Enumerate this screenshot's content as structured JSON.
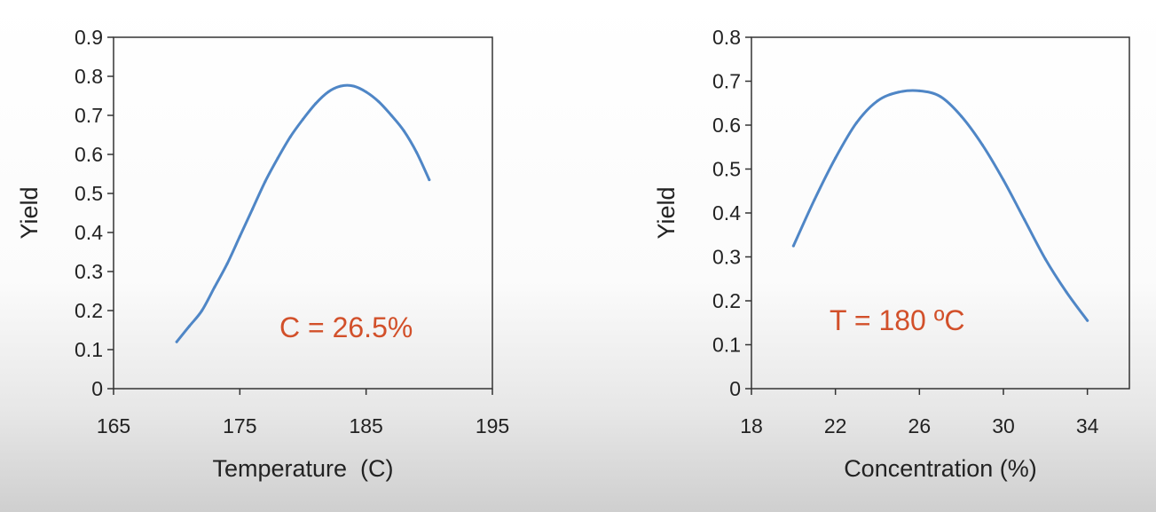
{
  "chart_data": [
    {
      "type": "line",
      "title": "",
      "xlabel": "Temperature  (C)",
      "ylabel": "Yield",
      "xlim": [
        165,
        195
      ],
      "ylim": [
        0,
        0.9
      ],
      "xticks": [
        165,
        175,
        185,
        195
      ],
      "yticks": [
        0,
        0.1,
        0.2,
        0.3,
        0.4,
        0.5,
        0.6,
        0.7,
        0.8,
        0.9
      ],
      "annotation": "C = 26.5%",
      "line_color": "#4f86c6",
      "annotation_color": "#d2502a",
      "grid": false,
      "series": [
        {
          "x": [
            170,
            171,
            172,
            173,
            174,
            175,
            176,
            177,
            178,
            179,
            180,
            181,
            182,
            183,
            184,
            185,
            186,
            187,
            188,
            189,
            190
          ],
          "y": [
            0.12,
            0.16,
            0.2,
            0.26,
            0.32,
            0.39,
            0.46,
            0.53,
            0.59,
            0.645,
            0.69,
            0.73,
            0.76,
            0.775,
            0.775,
            0.76,
            0.735,
            0.7,
            0.66,
            0.605,
            0.535
          ]
        }
      ]
    },
    {
      "type": "line",
      "title": "",
      "xlabel": "Concentration (%)",
      "ylabel": "Yield",
      "xlim": [
        18,
        36
      ],
      "ylim": [
        0,
        0.8
      ],
      "xticks": [
        18,
        22,
        26,
        30,
        34
      ],
      "yticks": [
        0,
        0.1,
        0.2,
        0.3,
        0.4,
        0.5,
        0.6,
        0.7,
        0.8
      ],
      "annotation": "T = 180 ºC",
      "line_color": "#4f86c6",
      "annotation_color": "#d2502a",
      "grid": false,
      "series": [
        {
          "x": [
            20,
            21,
            22,
            23,
            24,
            25,
            26,
            27,
            28,
            29,
            30,
            31,
            32,
            33,
            34
          ],
          "y": [
            0.325,
            0.43,
            0.525,
            0.605,
            0.655,
            0.675,
            0.678,
            0.665,
            0.62,
            0.555,
            0.475,
            0.385,
            0.295,
            0.22,
            0.155
          ]
        }
      ]
    }
  ]
}
